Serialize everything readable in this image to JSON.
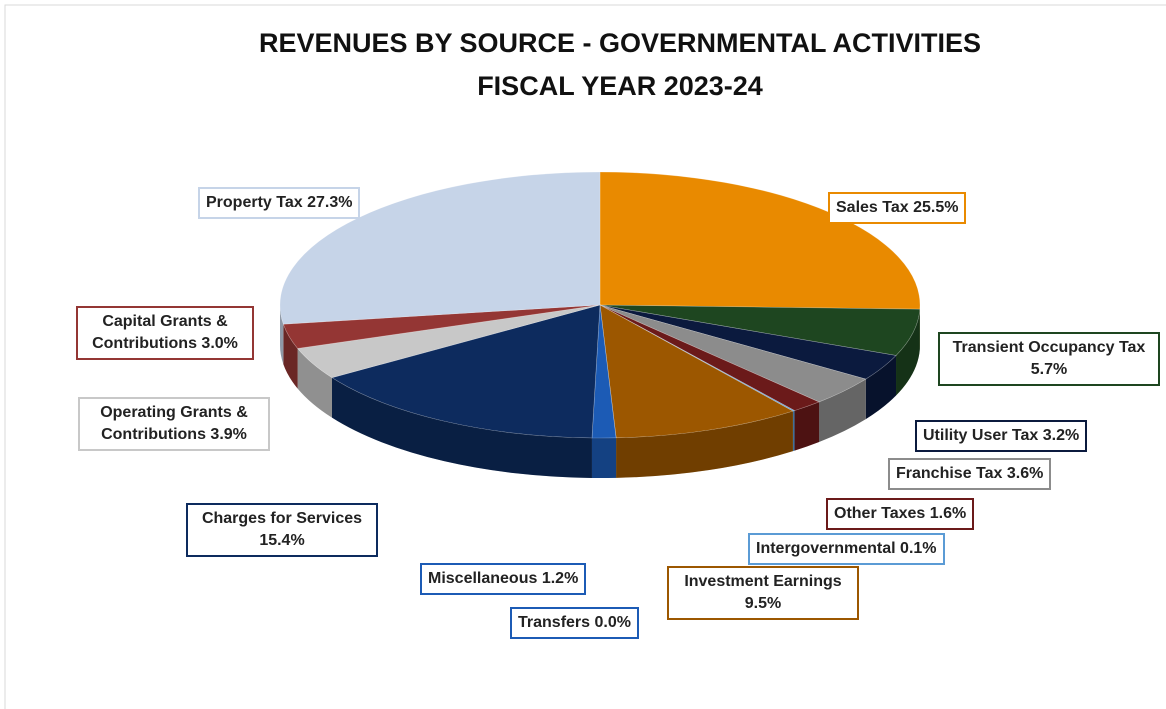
{
  "chart_data": {
    "type": "pie3d",
    "title": "REVENUES BY SOURCE - GOVERNMENTAL ACTIVITIES",
    "subtitle": "FISCAL YEAR 2023-24",
    "categories": [
      "Sales Tax",
      "Transient Occupancy Tax",
      "Utility User Tax",
      "Franchise Tax",
      "Other Taxes",
      "Intergovernmental",
      "Investment Earnings",
      "Transfers",
      "Miscellaneous",
      "Charges for Services",
      "Operating Grants & Contributions",
      "Capital Grants & Contributions",
      "Property Tax"
    ],
    "values": [
      25.5,
      5.7,
      3.2,
      3.6,
      1.6,
      0.1,
      9.5,
      0.0,
      1.2,
      15.4,
      3.9,
      3.0,
      27.3
    ],
    "value_labels": [
      "25.5%",
      "5.7%",
      "3.2%",
      "3.6%",
      "1.6%",
      "0.1%",
      "9.5%",
      "0.0%",
      "1.2%",
      "15.4%",
      "3.9%",
      "3.0%",
      "27.3%"
    ],
    "colors": [
      "#e98a00",
      "#1e4620",
      "#0b1a3e",
      "#8c8c8c",
      "#6b1a1a",
      "#5b9bd5",
      "#9c5700",
      "#1c5bb5",
      "#1c5bb5",
      "#0d2b5e",
      "#c8c8c8",
      "#943634",
      "#c6d4e8"
    ]
  }
}
